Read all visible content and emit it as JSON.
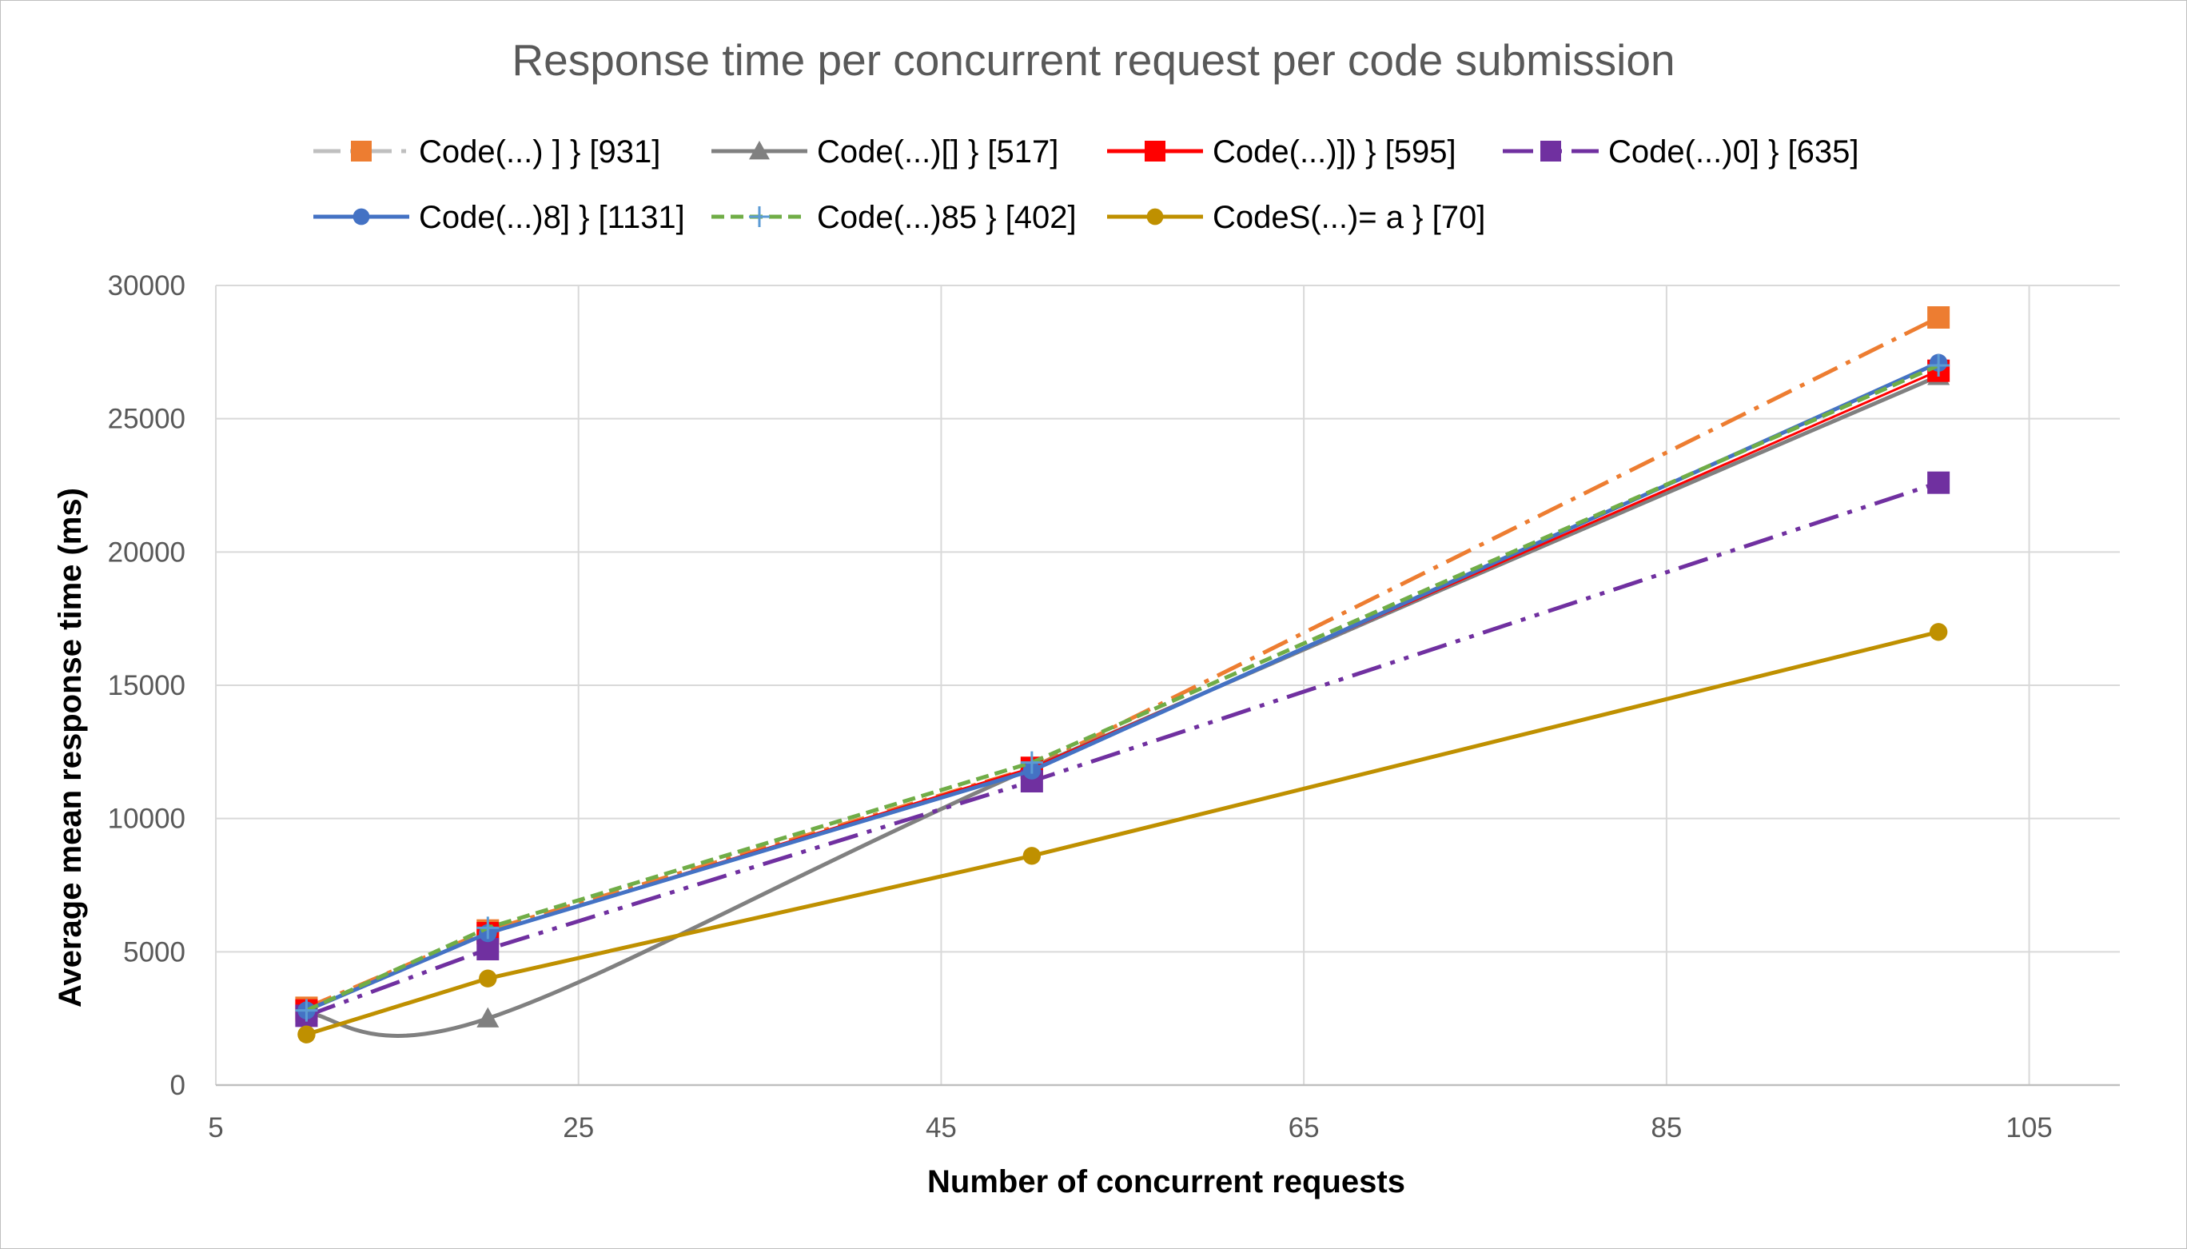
{
  "chart_data": {
    "type": "line",
    "title": "Response time per concurrent request per code submission",
    "xlabel": "Number of concurrent requests",
    "ylabel": "Average mean response time (ms)",
    "xlim": [
      5,
      110
    ],
    "ylim": [
      0,
      30000
    ],
    "x_ticks": [
      "5",
      "25",
      "45",
      "65",
      "85",
      "105"
    ],
    "y_ticks": [
      "0",
      "5000",
      "10000",
      "15000",
      "20000",
      "25000",
      "30000"
    ],
    "grid": true,
    "legend_position": "top",
    "series": [
      {
        "name": "Code(...) ] } [931]",
        "color": "#ED7D31",
        "line_color": "#ED7D31",
        "legend_line_color": "#BFBFBF",
        "dash": "dash-dot",
        "marker": "square",
        "smooth": false,
        "x": [
          10,
          20,
          50,
          100
        ],
        "y": [
          2900,
          5800,
          11900,
          28800
        ]
      },
      {
        "name": "Code(...)[] } [517]",
        "color": "#808080",
        "line_color": "#808080",
        "legend_line_color": "#808080",
        "dash": "solid",
        "marker": "triangle",
        "smooth": true,
        "x": [
          10,
          20,
          50,
          100
        ],
        "y": [
          2700,
          2500,
          11900,
          26600
        ]
      },
      {
        "name": "Code(...)]) } [595]",
        "color": "#FF0000",
        "line_color": "#FF0000",
        "legend_line_color": "#FF0000",
        "dash": "solid-thin",
        "marker": "square",
        "smooth": false,
        "x": [
          10,
          20,
          50,
          100
        ],
        "y": [
          2800,
          5700,
          11900,
          26800
        ]
      },
      {
        "name": "Code(...)0] } [635]",
        "color": "#7030A0",
        "line_color": "#7030A0",
        "legend_line_color": "#7030A0",
        "dash": "long-dash-dot-dot",
        "marker": "square",
        "smooth": false,
        "x": [
          10,
          20,
          50,
          100
        ],
        "y": [
          2600,
          5100,
          11400,
          22600
        ]
      },
      {
        "name": "Code(...)8] } [1131]",
        "color": "#4472C4",
        "line_color": "#4472C4",
        "legend_line_color": "#4472C4",
        "dash": "solid",
        "marker": "circle",
        "smooth": false,
        "x": [
          10,
          20,
          50,
          100
        ],
        "y": [
          2800,
          5700,
          11800,
          27100
        ]
      },
      {
        "name": "Code(...)85 } [402]",
        "color": "#70AD47",
        "line_color": "#70AD47",
        "legend_line_color": "#70AD47",
        "dash": "dash",
        "marker": "plus",
        "smooth": false,
        "x": [
          10,
          20,
          50,
          100
        ],
        "y": [
          2800,
          5900,
          12100,
          27000
        ]
      },
      {
        "name": "CodeS(...)= a } [70]",
        "color": "#BF9000",
        "line_color": "#BF9000",
        "legend_line_color": "#BF9000",
        "dash": "solid",
        "marker": "circle",
        "smooth": false,
        "x": [
          10,
          20,
          50,
          100
        ],
        "y": [
          1900,
          4000,
          8600,
          17000
        ]
      }
    ]
  }
}
